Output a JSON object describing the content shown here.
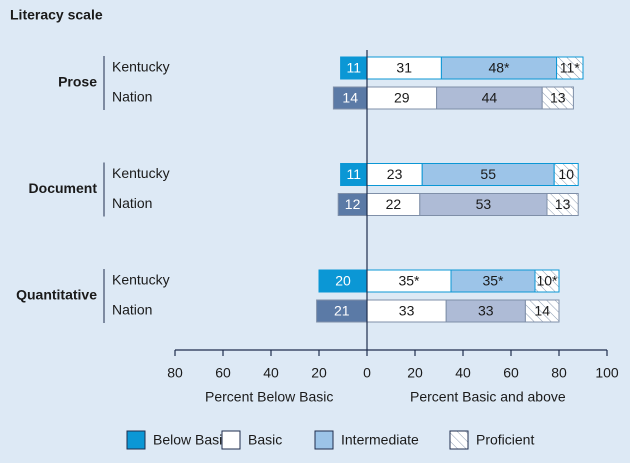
{
  "chart_data": {
    "type": "diverging_bar",
    "title": "Literacy scale",
    "groups": [
      "Prose",
      "Document",
      "Quantitative"
    ],
    "categories": [
      "Kentucky",
      "Nation",
      "Kentucky",
      "Nation",
      "Kentucky",
      "Nation"
    ],
    "series": [
      {
        "name": "Below Basic",
        "colors": [
          "#0b97d5",
          "#5b7aa6"
        ],
        "values": [
          -11,
          -14,
          -11,
          -12,
          -20,
          -21
        ],
        "value_labels": [
          "11",
          "14",
          "11",
          "12",
          "20",
          "21"
        ]
      },
      {
        "name": "Basic",
        "colors": [
          "#ffffff",
          "#ffffff"
        ],
        "values": [
          31,
          29,
          23,
          22,
          35,
          33
        ],
        "value_labels": [
          "31",
          "29",
          "23",
          "22",
          "35*",
          "33"
        ]
      },
      {
        "name": "Intermediate",
        "colors": [
          "#9cc4e8",
          "#aebbd6"
        ],
        "values": [
          48,
          44,
          55,
          53,
          35,
          33
        ],
        "value_labels": [
          "48*",
          "44",
          "55",
          "53",
          "35*",
          "33"
        ]
      },
      {
        "name": "Proficient",
        "colors": [
          "#ffffff",
          "#ffffff"
        ],
        "pattern": "hatch",
        "values": [
          11,
          13,
          10,
          13,
          10,
          14
        ],
        "value_labels": [
          "11*",
          "13",
          "10",
          "13",
          "10*",
          "14"
        ]
      }
    ],
    "xlim": [
      -80,
      100
    ],
    "xticks": [
      {
        "value": -80,
        "label": "80"
      },
      {
        "value": -60,
        "label": "60"
      },
      {
        "value": -40,
        "label": "40"
      },
      {
        "value": -20,
        "label": "20"
      },
      0,
      20,
      40,
      60,
      80,
      100
    ],
    "xlabel_left": "Percent Below Basic",
    "xlabel_right": "Percent Basic and above"
  }
}
